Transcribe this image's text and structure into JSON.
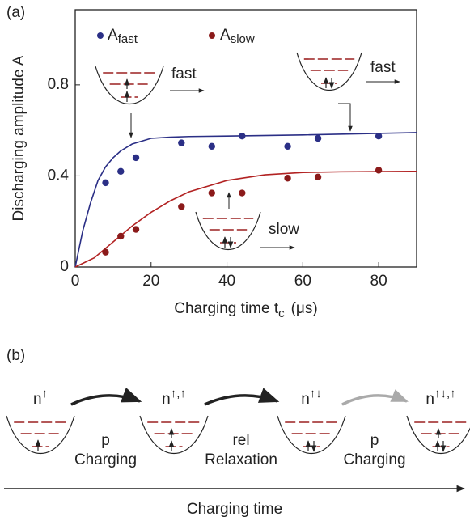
{
  "chart_data": {
    "type": "scatter",
    "panel_label": "(a)",
    "ylabel": "Discharging amplitude  A",
    "xlabel": {
      "text": "Charging time t",
      "subscript": "c",
      "unit": "(μs)"
    },
    "xlim": [
      0,
      90
    ],
    "xticks": [
      0,
      20,
      40,
      60,
      80
    ],
    "ylim": [
      0,
      1.13
    ],
    "yticks": [
      0,
      0.4,
      0.8
    ],
    "series": [
      {
        "name": "A",
        "subscript": "fast",
        "color": "#2b2f86",
        "x": [
          8,
          12,
          16,
          28,
          36,
          44,
          56,
          64,
          80
        ],
        "values": [
          0.37,
          0.42,
          0.48,
          0.545,
          0.53,
          0.575,
          0.53,
          0.565,
          0.575
        ]
      },
      {
        "name": "A",
        "subscript": "slow",
        "color": "#8b1a1a",
        "x": [
          8,
          12,
          16,
          28,
          36,
          44,
          56,
          64,
          80
        ],
        "values": [
          0.065,
          0.135,
          0.165,
          0.265,
          0.325,
          0.325,
          0.39,
          0.395,
          0.425
        ]
      }
    ],
    "fit_lines": [
      {
        "color": "#2b2f86",
        "x": [
          0,
          2,
          4,
          6,
          8,
          10,
          12,
          15,
          20,
          25,
          30,
          40,
          60,
          90
        ],
        "values": [
          0,
          0.16,
          0.28,
          0.38,
          0.44,
          0.48,
          0.51,
          0.54,
          0.565,
          0.57,
          0.573,
          0.575,
          0.58,
          0.59
        ]
      },
      {
        "color": "#b22222",
        "x": [
          0,
          5,
          10,
          15,
          20,
          25,
          30,
          40,
          50,
          60,
          70,
          90
        ],
        "values": [
          0,
          0.04,
          0.11,
          0.18,
          0.24,
          0.29,
          0.33,
          0.38,
          0.405,
          0.415,
          0.418,
          0.42
        ]
      }
    ],
    "annotations": [
      "fast",
      "fast",
      "slow"
    ]
  },
  "diagram": {
    "panel_label": "(b)",
    "states": [
      {
        "base": "n",
        "sup": "↑"
      },
      {
        "base": "n",
        "sup": "↑,↑"
      },
      {
        "base": "n",
        "sup": "↑↓"
      },
      {
        "base": "n",
        "sup": "↑↓,↑"
      }
    ],
    "transitions": [
      {
        "rate": "p",
        "label": "Charging",
        "color": "#222"
      },
      {
        "rate": "rel",
        "label": "Relaxation",
        "color": "#222"
      },
      {
        "rate": "p",
        "label": "Charging",
        "color": "#aaa"
      }
    ],
    "axis_label": "Charging time"
  }
}
